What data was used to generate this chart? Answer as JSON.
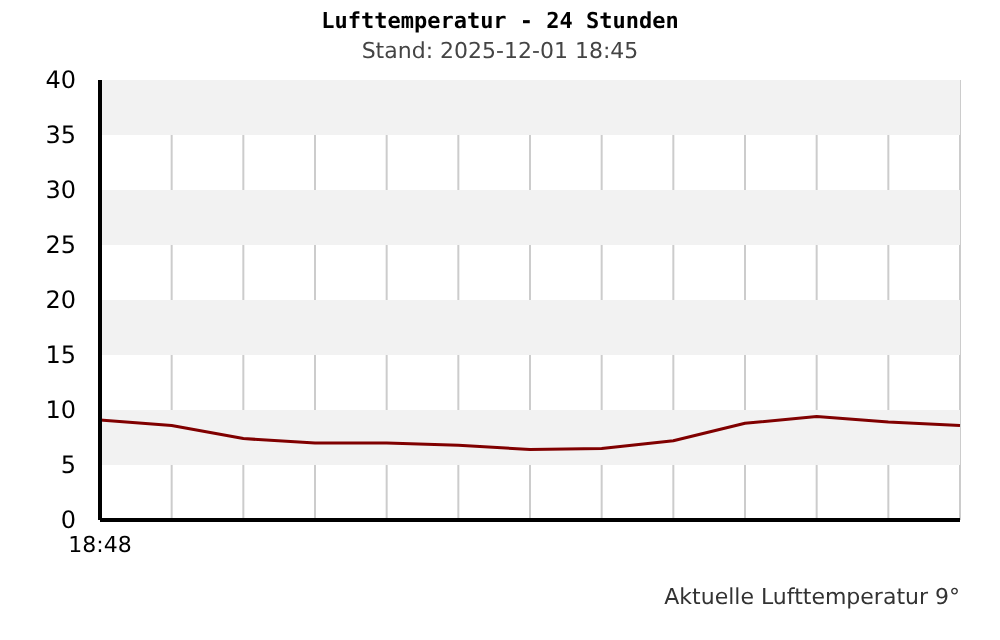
{
  "chart_data": {
    "type": "line",
    "title": "Lufttemperatur - 24 Stunden",
    "subtitle": "Stand: 2025-12-01 18:45",
    "annotations": [
      "Aktuelle Lufttemperatur 9°"
    ],
    "categories": [
      "18:48",
      null,
      null,
      null,
      null,
      null,
      null,
      null,
      null,
      null,
      null,
      null,
      null
    ],
    "series": [
      {
        "color": "#800000",
        "values": [
          9.1,
          8.6,
          7.4,
          7.0,
          7.0,
          6.8,
          6.4,
          6.5,
          7.2,
          8.8,
          9.4,
          8.9,
          8.6
        ]
      }
    ],
    "ylim": [
      0,
      40
    ],
    "yticks": [
      0,
      5,
      10,
      15,
      20,
      25,
      30,
      35,
      40
    ],
    "bands": [
      {
        "axis": "y",
        "from": 5,
        "to": 10,
        "color": "#f2f2f2"
      },
      {
        "axis": "y",
        "from": 15,
        "to": 20,
        "color": "#f2f2f2"
      },
      {
        "axis": "y",
        "from": 25,
        "to": 30,
        "color": "#f2f2f2"
      },
      {
        "axis": "y",
        "from": 35,
        "to": 40,
        "color": "#f2f2f2"
      }
    ],
    "grid": "x",
    "marker": "none",
    "line_style": "solid"
  }
}
